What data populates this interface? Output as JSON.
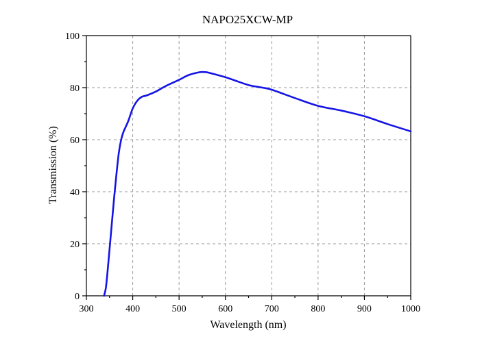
{
  "chart_data": {
    "type": "line",
    "title": "NAPO25XCW-MP",
    "xlabel": "Wavelength (nm)",
    "ylabel": "Transmission (%)",
    "xlim": [
      300,
      1000
    ],
    "ylim": [
      0,
      100
    ],
    "xticks": [
      300,
      400,
      500,
      600,
      700,
      800,
      900,
      1000
    ],
    "yticks": [
      0,
      20,
      40,
      60,
      80,
      100
    ],
    "grid": true,
    "colors": {
      "series": "#1414e6",
      "grid": "#9a9a9a",
      "axis": "#000000"
    },
    "series": [
      {
        "x": [
          338,
          342,
          346,
          350,
          355,
          360,
          365,
          370,
          375,
          380,
          390,
          400,
          410,
          420,
          430,
          450,
          470,
          500,
          520,
          540,
          550,
          560,
          580,
          600,
          620,
          650,
          680,
          700,
          750,
          800,
          850,
          900,
          950,
          1000
        ],
        "y": [
          0,
          3,
          10,
          18,
          28,
          38,
          47,
          55,
          60,
          63,
          67,
          72,
          75,
          76.5,
          77,
          78.5,
          80.5,
          83,
          84.8,
          85.8,
          86,
          85.9,
          85,
          84,
          82.8,
          81,
          80,
          79.2,
          76,
          73,
          71.2,
          69,
          66,
          63.2
        ]
      }
    ]
  }
}
